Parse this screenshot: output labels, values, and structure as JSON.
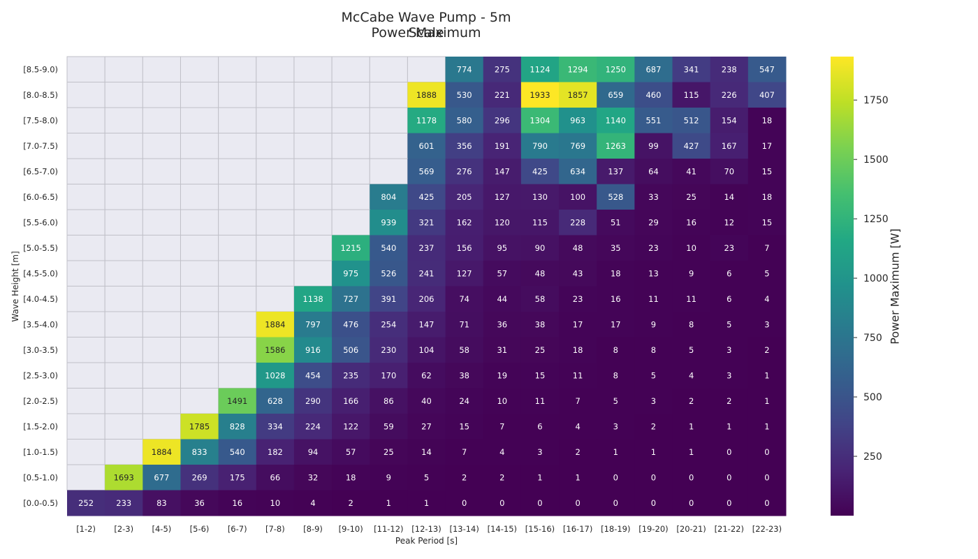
{
  "chart_data": {
    "type": "heatmap",
    "title": "McCabe Wave Pump - 5m Scale",
    "subtitle": "Power Maximum",
    "xlabel": "Peak Period [s]",
    "ylabel": "Wave Height [m]",
    "colorbar_label": "Power Maximum [W]",
    "colormap": "viridis",
    "color_range": [
      0,
      1933
    ],
    "colorbar_ticks": [
      250,
      500,
      750,
      1000,
      1250,
      1500,
      1750
    ],
    "missing_color": "#eaeaf2",
    "x_categories": [
      "[1-2)",
      "[2-3)",
      "[4-5)",
      "[5-6)",
      "[6-7)",
      "[7-8)",
      "[8-9)",
      "[9-10)",
      "[11-12)",
      "[12-13)",
      "[13-14)",
      "[14-15)",
      "[15-16)",
      "[16-17)",
      "[18-19)",
      "[19-20)",
      "[20-21)",
      "[21-22)",
      "[22-23)"
    ],
    "y_categories": [
      "[8.5-9.0)",
      "[8.0-8.5)",
      "[7.5-8.0)",
      "[7.0-7.5)",
      "[6.5-7.0)",
      "[6.0-6.5)",
      "[5.5-6.0)",
      "[5.0-5.5)",
      "[4.5-5.0)",
      "[4.0-4.5)",
      "[3.5-4.0)",
      "[3.0-3.5)",
      "[2.5-3.0)",
      "[2.0-2.5)",
      "[1.5-2.0)",
      "[1.0-1.5)",
      "[0.5-1.0)",
      "[0.0-0.5)"
    ],
    "values": [
      [
        null,
        null,
        null,
        null,
        null,
        null,
        null,
        null,
        null,
        null,
        774,
        275,
        1124,
        1294,
        1250,
        687,
        341,
        238,
        547
      ],
      [
        null,
        null,
        null,
        null,
        null,
        null,
        null,
        null,
        null,
        1888,
        530,
        221,
        1933,
        1857,
        659,
        460,
        115,
        226,
        407
      ],
      [
        null,
        null,
        null,
        null,
        null,
        null,
        null,
        null,
        null,
        1178,
        580,
        296,
        1304,
        963,
        1140,
        551,
        512,
        154,
        18
      ],
      [
        null,
        null,
        null,
        null,
        null,
        null,
        null,
        null,
        null,
        601,
        356,
        191,
        790,
        769,
        1263,
        99,
        427,
        167,
        17
      ],
      [
        null,
        null,
        null,
        null,
        null,
        null,
        null,
        null,
        null,
        569,
        276,
        147,
        425,
        634,
        137,
        64,
        41,
        70,
        15
      ],
      [
        null,
        null,
        null,
        null,
        null,
        null,
        null,
        null,
        804,
        425,
        205,
        127,
        130,
        100,
        528,
        33,
        25,
        14,
        18
      ],
      [
        null,
        null,
        null,
        null,
        null,
        null,
        null,
        null,
        939,
        321,
        162,
        120,
        115,
        228,
        51,
        29,
        16,
        12,
        15
      ],
      [
        null,
        null,
        null,
        null,
        null,
        null,
        null,
        1215,
        540,
        237,
        156,
        95,
        90,
        48,
        35,
        23,
        10,
        23,
        7
      ],
      [
        null,
        null,
        null,
        null,
        null,
        null,
        null,
        975,
        526,
        241,
        127,
        57,
        48,
        43,
        18,
        13,
        9,
        6,
        5
      ],
      [
        null,
        null,
        null,
        null,
        null,
        null,
        1138,
        727,
        391,
        206,
        74,
        44,
        58,
        23,
        16,
        11,
        11,
        6,
        4
      ],
      [
        null,
        null,
        null,
        null,
        null,
        1884,
        797,
        476,
        254,
        147,
        71,
        36,
        38,
        17,
        17,
        9,
        8,
        5,
        3
      ],
      [
        null,
        null,
        null,
        null,
        null,
        1586,
        916,
        506,
        230,
        104,
        58,
        31,
        25,
        18,
        8,
        8,
        5,
        3,
        2
      ],
      [
        null,
        null,
        null,
        null,
        null,
        1028,
        454,
        235,
        170,
        62,
        38,
        19,
        15,
        11,
        8,
        5,
        4,
        3,
        1
      ],
      [
        null,
        null,
        null,
        null,
        1491,
        628,
        290,
        166,
        86,
        40,
        24,
        10,
        11,
        7,
        5,
        3,
        2,
        2,
        1
      ],
      [
        null,
        null,
        null,
        1785,
        828,
        334,
        224,
        122,
        59,
        27,
        15,
        7,
        6,
        4,
        3,
        2,
        1,
        1,
        1
      ],
      [
        null,
        null,
        1884,
        833,
        540,
        182,
        94,
        57,
        25,
        14,
        7,
        4,
        3,
        2,
        1,
        1,
        1,
        0,
        0
      ],
      [
        null,
        1693,
        677,
        269,
        175,
        66,
        32,
        18,
        9,
        5,
        2,
        2,
        1,
        1,
        0,
        0,
        0,
        0,
        0
      ],
      [
        252,
        233,
        83,
        36,
        16,
        10,
        4,
        2,
        1,
        1,
        0,
        0,
        0,
        0,
        0,
        0,
        0,
        0,
        0
      ]
    ]
  }
}
